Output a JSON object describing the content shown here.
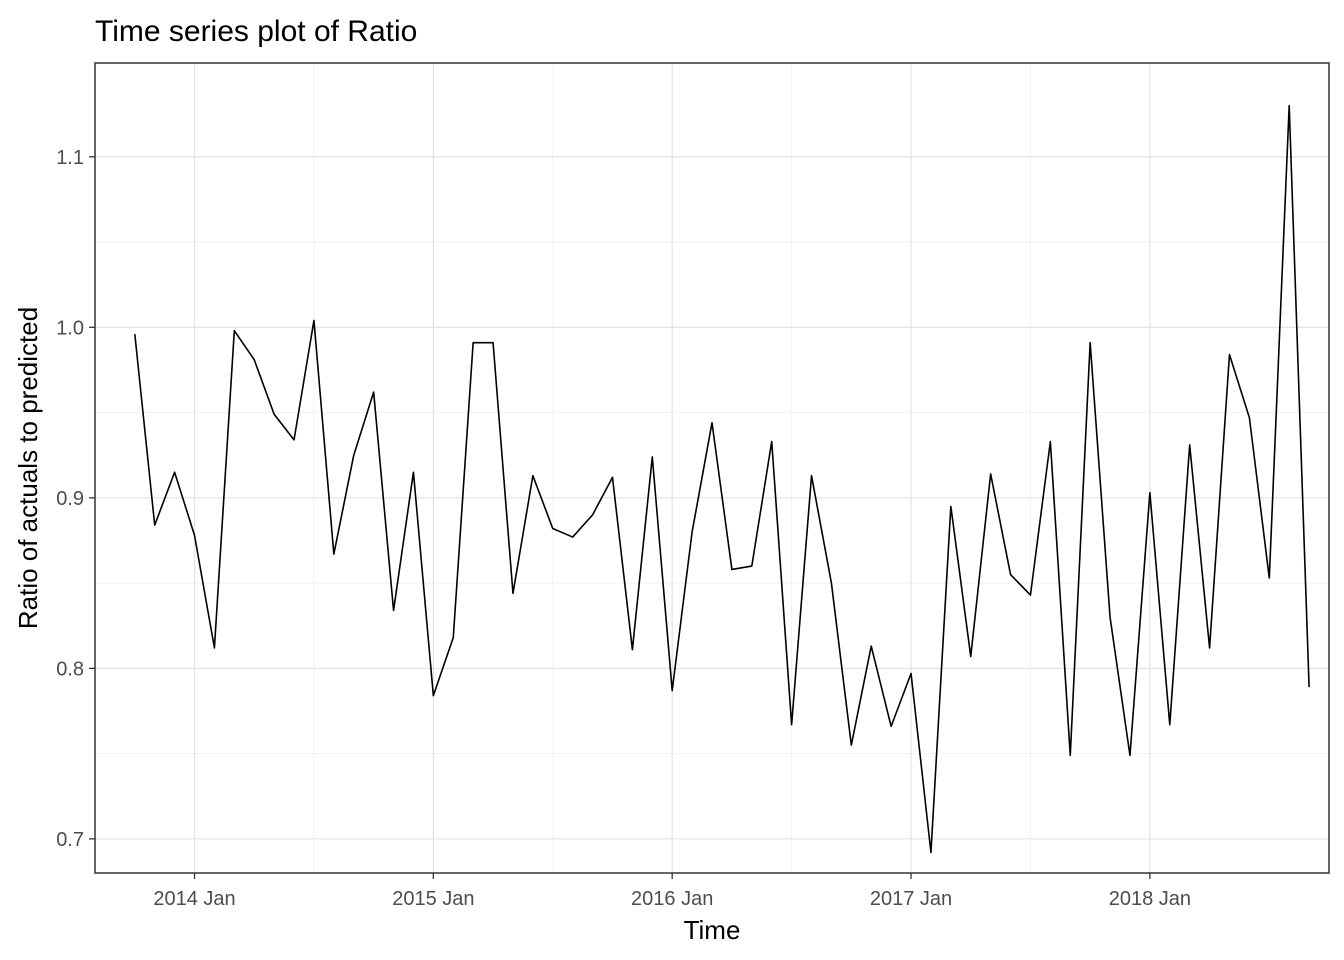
{
  "chart_data": {
    "type": "line",
    "title": "Time series plot of Ratio",
    "xlabel": "Time",
    "ylabel": "Ratio of actuals to predicted",
    "x_ticks": [
      {
        "date": "2014-01",
        "label": "2014 Jan"
      },
      {
        "date": "2015-01",
        "label": "2015 Jan"
      },
      {
        "date": "2016-01",
        "label": "2016 Jan"
      },
      {
        "date": "2017-01",
        "label": "2017 Jan"
      },
      {
        "date": "2018-01",
        "label": "2018 Jan"
      }
    ],
    "y_ticks": [
      0.7,
      0.8,
      0.9,
      1.0,
      1.1
    ],
    "y_tick_labels": [
      "0.7",
      "0.8",
      "0.9",
      "1.0",
      "1.1"
    ],
    "xlim": [
      "2013-08",
      "2018-10"
    ],
    "ylim": [
      0.68,
      1.155
    ],
    "grid": true,
    "line_color": "#000000",
    "series": [
      {
        "x": [
          "2013-10",
          "2013-11",
          "2013-12",
          "2014-01",
          "2014-02",
          "2014-03",
          "2014-04",
          "2014-05",
          "2014-06",
          "2014-07",
          "2014-08",
          "2014-09",
          "2014-10",
          "2014-11",
          "2014-12",
          "2015-01",
          "2015-02",
          "2015-03",
          "2015-04",
          "2015-05",
          "2015-06",
          "2015-07",
          "2015-08",
          "2015-09",
          "2015-10",
          "2015-11",
          "2015-12",
          "2016-01",
          "2016-02",
          "2016-03",
          "2016-04",
          "2016-05",
          "2016-06",
          "2016-07",
          "2016-08",
          "2016-09",
          "2016-10",
          "2016-11",
          "2016-12",
          "2017-01",
          "2017-02",
          "2017-03",
          "2017-04",
          "2017-05",
          "2017-06",
          "2017-07",
          "2017-08",
          "2017-09",
          "2017-10",
          "2017-11",
          "2017-12",
          "2018-01",
          "2018-02",
          "2018-03",
          "2018-04",
          "2018-05",
          "2018-06",
          "2018-07",
          "2018-08",
          "2018-09"
        ],
        "values": [
          0.996,
          0.884,
          0.915,
          0.878,
          0.812,
          0.998,
          0.981,
          0.949,
          0.934,
          1.004,
          0.867,
          0.925,
          0.962,
          0.834,
          0.915,
          0.784,
          0.818,
          0.991,
          0.991,
          0.844,
          0.913,
          0.882,
          0.877,
          0.89,
          0.912,
          0.811,
          0.924,
          0.787,
          0.88,
          0.944,
          0.858,
          0.86,
          0.933,
          0.767,
          0.913,
          0.85,
          0.755,
          0.813,
          0.766,
          0.797,
          0.692,
          0.895,
          0.807,
          0.914,
          0.855,
          0.843,
          0.933,
          0.749,
          0.991,
          0.83,
          0.749,
          0.903,
          0.767,
          0.931,
          0.812,
          0.984,
          0.947,
          0.853,
          1.13,
          0.789
        ]
      }
    ]
  }
}
